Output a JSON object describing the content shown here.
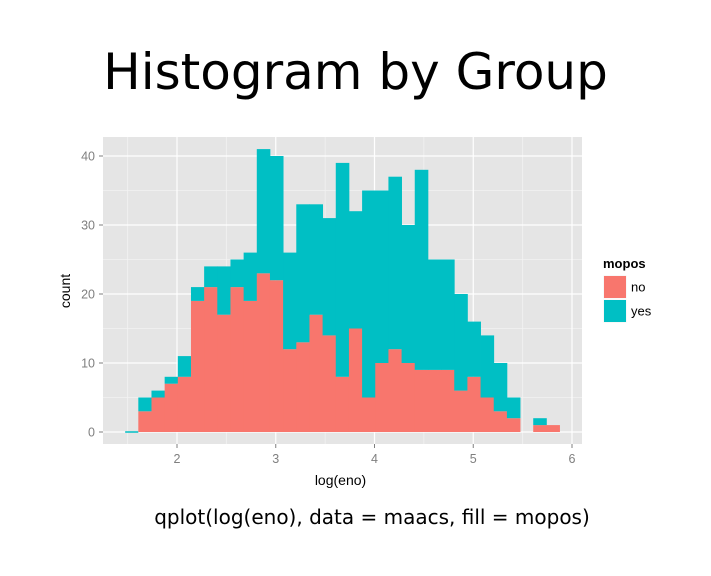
{
  "slide": {
    "title": "Histogram by Group",
    "caption": "qplot(log(eno), data = maacs, fill = mopos)"
  },
  "colors": {
    "panel_bg": "#e5e5e5",
    "grid_major": "#ffffff",
    "grid_minor": "#f2f2f2",
    "no": "#f8766d",
    "yes": "#00bfc4"
  },
  "chart_data": {
    "type": "bar",
    "stacked": true,
    "xlabel": "log(eno)",
    "ylabel": "count",
    "xlim": [
      1.5,
      5.9
    ],
    "ylim": [
      0,
      40
    ],
    "xticks": [
      2,
      3,
      4,
      5,
      6
    ],
    "yticks": [
      0,
      10,
      20,
      30,
      40
    ],
    "grid": true,
    "legend": {
      "title": "mopos",
      "position": "right",
      "entries": [
        "no",
        "yes"
      ]
    },
    "bin_start": 1.475,
    "binwidth": 0.1333,
    "series": [
      {
        "name": "no",
        "color": "#f8766d",
        "values": [
          0,
          3,
          5,
          7,
          8,
          19,
          21,
          17,
          21,
          19,
          23,
          22,
          12,
          13,
          17,
          14,
          8,
          15,
          5,
          10,
          12,
          10,
          9,
          9,
          9,
          6,
          8,
          5,
          3,
          2,
          0,
          1,
          1,
          0
        ]
      },
      {
        "name": "yes",
        "color": "#00bfc4",
        "values": [
          0,
          2,
          1,
          1,
          3,
          2,
          3,
          7,
          4,
          7,
          18,
          18,
          14,
          20,
          16,
          17,
          31,
          17,
          30,
          25,
          25,
          20,
          29,
          16,
          16,
          14,
          8,
          9,
          7,
          3,
          0,
          1,
          0,
          0
        ]
      }
    ]
  }
}
